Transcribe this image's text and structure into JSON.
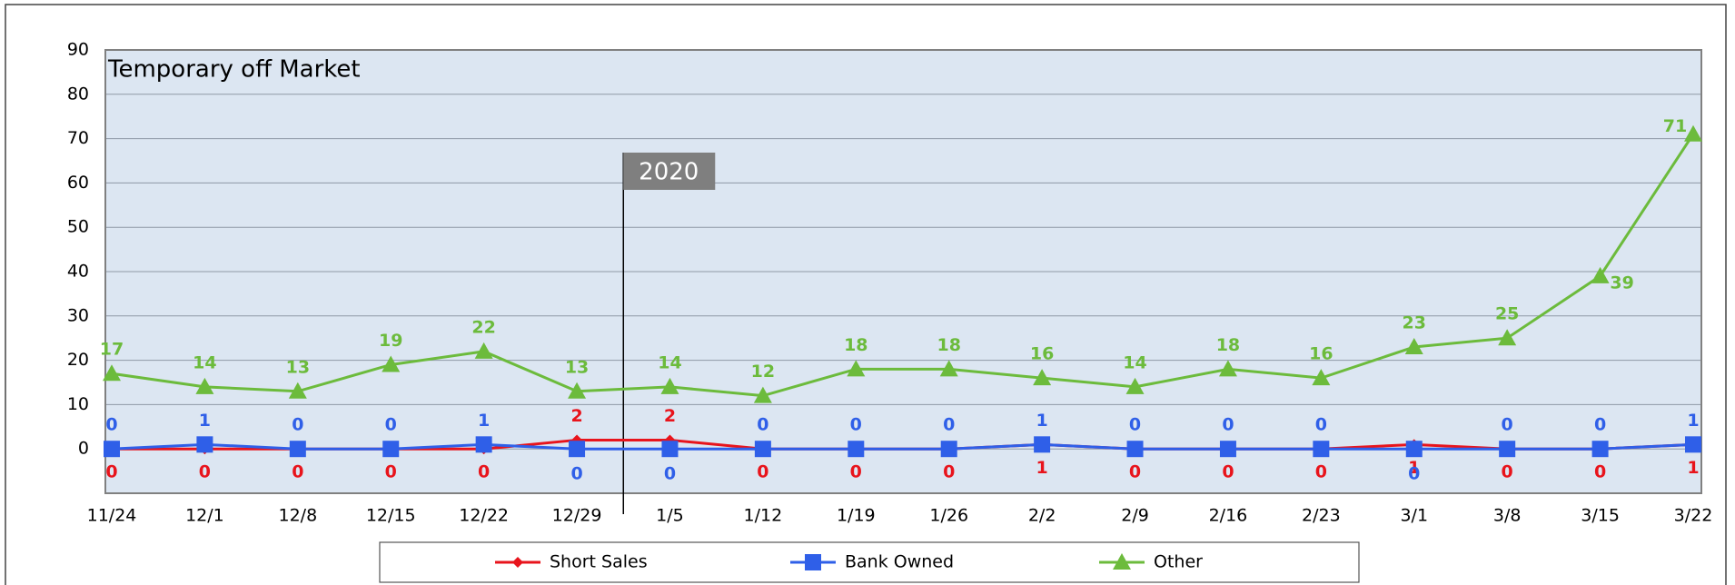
{
  "chart_data": {
    "type": "line",
    "title": "Temporary off Market",
    "annotation": "2020",
    "categories": [
      "11/24",
      "12/1",
      "12/8",
      "12/15",
      "12/22",
      "12/29",
      "1/5",
      "1/12",
      "1/19",
      "1/26",
      "2/2",
      "2/9",
      "2/16",
      "2/23",
      "3/1",
      "3/8",
      "3/15",
      "3/22"
    ],
    "series": [
      {
        "name": "Short Sales",
        "color": "#e8141c",
        "marker": "diamond",
        "values": [
          0,
          0,
          0,
          0,
          0,
          2,
          2,
          0,
          0,
          0,
          1,
          0,
          0,
          0,
          1,
          0,
          0,
          1
        ]
      },
      {
        "name": "Bank Owned",
        "color": "#2f5fe8",
        "marker": "square",
        "values": [
          0,
          1,
          0,
          0,
          1,
          0,
          0,
          0,
          0,
          0,
          1,
          0,
          0,
          0,
          0,
          0,
          0,
          1
        ]
      },
      {
        "name": "Other",
        "color": "#6cbb3c",
        "marker": "triangle",
        "values": [
          17,
          14,
          13,
          19,
          22,
          13,
          14,
          12,
          18,
          18,
          16,
          14,
          18,
          16,
          23,
          25,
          39,
          71
        ]
      }
    ],
    "ylim": [
      -10,
      90
    ],
    "yticks": [
      0,
      10,
      20,
      30,
      40,
      50,
      60,
      70,
      80,
      90
    ],
    "grid": true,
    "legend": "bottom"
  }
}
